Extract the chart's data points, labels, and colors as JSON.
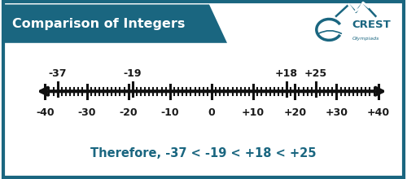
{
  "title": "Comparison of Integers",
  "title_bg_color": "#1a6680",
  "title_text_color": "#ffffff",
  "bg_color": "#ffffff",
  "border_color": "#1a6680",
  "number_line_min": -40,
  "number_line_max": 40,
  "tick_labels": [
    "-40",
    "-30",
    "-20",
    "-10",
    "0",
    "+10",
    "+20",
    "+30",
    "+40"
  ],
  "tick_values": [
    -40,
    -30,
    -20,
    -10,
    0,
    10,
    20,
    30,
    40
  ],
  "highlighted_points": [
    -37,
    -19,
    18,
    25
  ],
  "highlighted_labels": [
    "-37",
    "-19",
    "+18",
    "+25"
  ],
  "conclusion_text": "Therefore, -37 < -19 < +18 < +25",
  "conclusion_color": "#1a6680",
  "line_color": "#111111",
  "tick_color": "#111111",
  "conclusion_fontsize": 10.5,
  "title_fontsize": 11.5,
  "tick_label_fontsize": 9,
  "highlight_label_fontsize": 9
}
